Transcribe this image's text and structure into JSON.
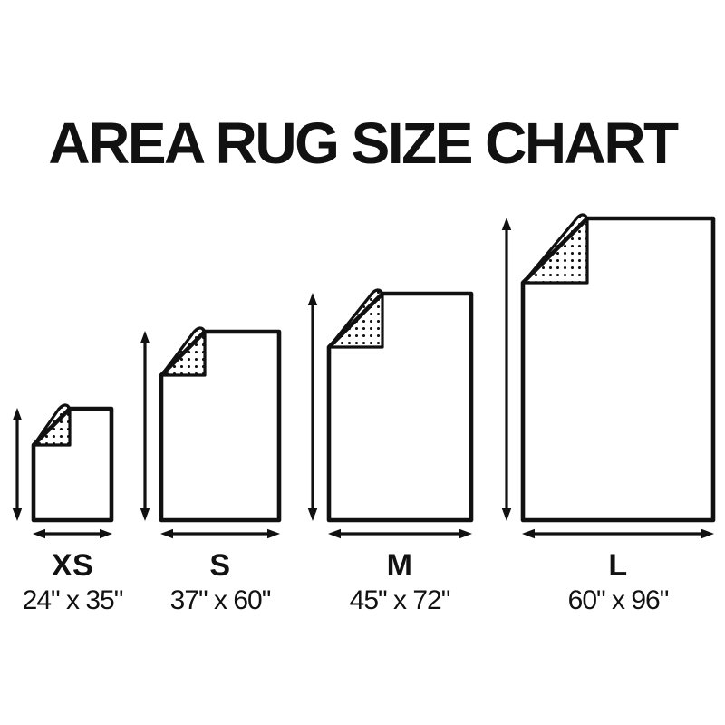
{
  "title": "AREA RUG SIZE CHART",
  "sizes": [
    {
      "label": "XS",
      "dimensions": "24\" x 35\"",
      "width_in": 24,
      "height_in": 35
    },
    {
      "label": "S",
      "dimensions": "37\" x 60\"",
      "width_in": 37,
      "height_in": 60
    },
    {
      "label": "M",
      "dimensions": "45\" x 72\"",
      "width_in": 45,
      "height_in": 72
    },
    {
      "label": "L",
      "dimensions": "60\" x 96\"",
      "width_in": 60,
      "height_in": 96
    }
  ],
  "colors": {
    "ink": "#111111",
    "background": "#ffffff"
  }
}
